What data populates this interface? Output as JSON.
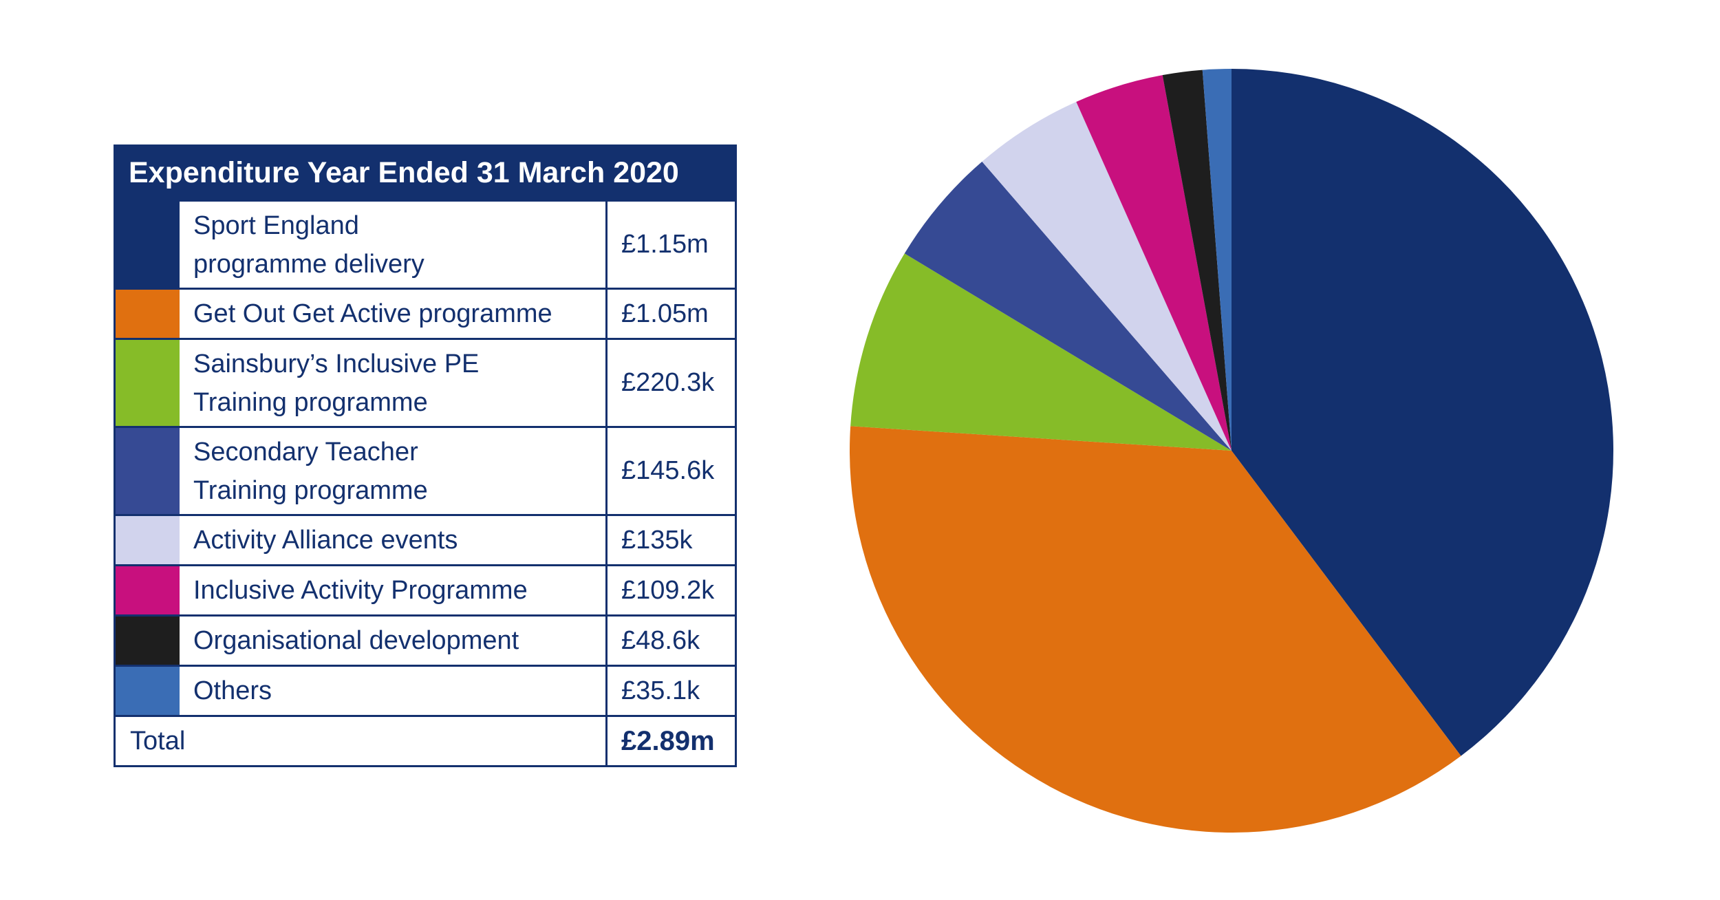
{
  "chart_data": {
    "type": "pie",
    "title": "Expenditure Year Ended 31 March 2020",
    "slices": [
      {
        "label": "Sport England programme delivery",
        "label_lines": [
          "Sport England",
          "programme delivery"
        ],
        "value_label": "£1.15m",
        "value": 1150.0,
        "color": "#13306e"
      },
      {
        "label": "Get Out Get Active programme",
        "label_lines": [
          "Get Out Get Active programme"
        ],
        "value_label": "£1.05m",
        "value": 1050.0,
        "color": "#e07010"
      },
      {
        "label": "Sainsbury’s Inclusive PE Training programme",
        "label_lines": [
          "Sainsbury’s Inclusive PE",
          "Training programme"
        ],
        "value_label": "£220.3k",
        "value": 220.3,
        "color": "#86bc28"
      },
      {
        "label": "Secondary Teacher Training programme",
        "label_lines": [
          "Secondary Teacher",
          "Training programme"
        ],
        "value_label": "£145.6k",
        "value": 145.6,
        "color": "#364a94"
      },
      {
        "label": "Activity Alliance events",
        "label_lines": [
          "Activity Alliance events"
        ],
        "value_label": "£135k",
        "value": 135.0,
        "color": "#d1d3ed"
      },
      {
        "label": "Inclusive Activity Programme",
        "label_lines": [
          "Inclusive Activity Programme"
        ],
        "value_label": "£109.2k",
        "value": 109.2,
        "color": "#c8107e"
      },
      {
        "label": "Organisational development",
        "label_lines": [
          "Organisational development"
        ],
        "value_label": "£48.6k",
        "value": 48.6,
        "color": "#1e1e1e"
      },
      {
        "label": "Others",
        "label_lines": [
          "Others"
        ],
        "value_label": "£35.1k",
        "value": 35.1,
        "color": "#3a6db5"
      }
    ],
    "total_label": "Total",
    "total_value_label": "£2.89m"
  }
}
